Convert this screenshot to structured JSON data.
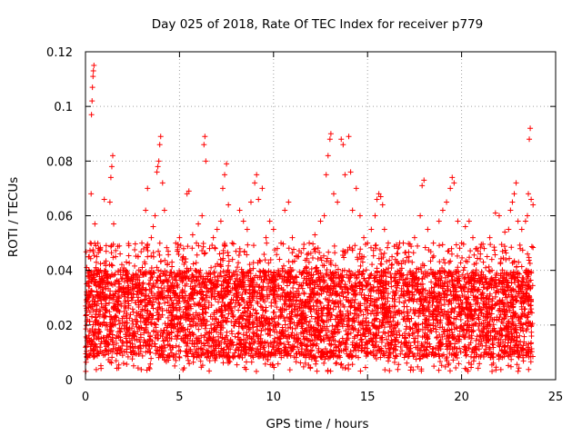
{
  "chart_data": {
    "type": "scatter",
    "title": "Day 025 of 2018, Rate Of TEC Index for receiver p779",
    "xlabel": "GPS time / hours",
    "ylabel": "ROTI / TECUs",
    "xlim": [
      0,
      25
    ],
    "ylim": [
      0,
      0.12
    ],
    "grid": true,
    "marker": "+",
    "color": "#ff0000",
    "x_ticks": [
      0,
      5,
      10,
      15,
      20,
      25
    ],
    "x_tick_labels": [
      "0",
      "5",
      "10",
      "15",
      "20",
      "25"
    ],
    "y_ticks": [
      0,
      0.02,
      0.04,
      0.06,
      0.08,
      0.1,
      0.12
    ],
    "y_tick_labels": [
      "0",
      "0.02",
      "0.04",
      "0.06",
      "0.08",
      "0.1",
      "0.12"
    ],
    "series": [
      {
        "name": "ROTI",
        "points": [
          [
            0.05,
            0.012
          ],
          [
            0.1,
            0.022
          ],
          [
            0.15,
            0.03
          ],
          [
            0.2,
            0.045
          ],
          [
            0.25,
            0.05
          ],
          [
            0.3,
            0.068
          ],
          [
            0.32,
            0.097
          ],
          [
            0.35,
            0.102
          ],
          [
            0.37,
            0.107
          ],
          [
            0.4,
            0.111
          ],
          [
            0.42,
            0.113
          ],
          [
            0.45,
            0.115
          ],
          [
            0.5,
            0.057
          ],
          [
            0.55,
            0.049
          ],
          [
            0.6,
            0.045
          ],
          [
            0.7,
            0.048
          ],
          [
            0.8,
            0.04
          ],
          [
            0.9,
            0.037
          ],
          [
            1.0,
            0.066
          ],
          [
            1.1,
            0.047
          ],
          [
            1.3,
            0.065
          ],
          [
            1.35,
            0.074
          ],
          [
            1.4,
            0.078
          ],
          [
            1.45,
            0.082
          ],
          [
            1.5,
            0.057
          ],
          [
            1.6,
            0.045
          ],
          [
            1.8,
            0.035
          ],
          [
            2.0,
            0.04
          ],
          [
            2.2,
            0.037
          ],
          [
            2.5,
            0.036
          ],
          [
            2.8,
            0.045
          ],
          [
            3.0,
            0.05
          ],
          [
            3.2,
            0.062
          ],
          [
            3.3,
            0.07
          ],
          [
            3.5,
            0.052
          ],
          [
            3.6,
            0.056
          ],
          [
            3.7,
            0.06
          ],
          [
            3.8,
            0.076
          ],
          [
            3.85,
            0.078
          ],
          [
            3.9,
            0.08
          ],
          [
            3.95,
            0.086
          ],
          [
            4.0,
            0.089
          ],
          [
            4.1,
            0.072
          ],
          [
            4.2,
            0.062
          ],
          [
            4.4,
            0.047
          ],
          [
            4.6,
            0.043
          ],
          [
            4.8,
            0.05
          ],
          [
            5.0,
            0.052
          ],
          [
            5.2,
            0.045
          ],
          [
            5.4,
            0.068
          ],
          [
            5.5,
            0.069
          ],
          [
            5.7,
            0.053
          ],
          [
            5.9,
            0.05
          ],
          [
            6.0,
            0.057
          ],
          [
            6.2,
            0.06
          ],
          [
            6.3,
            0.086
          ],
          [
            6.35,
            0.089
          ],
          [
            6.4,
            0.08
          ],
          [
            6.6,
            0.048
          ],
          [
            6.8,
            0.052
          ],
          [
            7.0,
            0.055
          ],
          [
            7.2,
            0.058
          ],
          [
            7.3,
            0.07
          ],
          [
            7.4,
            0.075
          ],
          [
            7.5,
            0.079
          ],
          [
            7.6,
            0.064
          ],
          [
            7.8,
            0.05
          ],
          [
            8.0,
            0.047
          ],
          [
            8.2,
            0.062
          ],
          [
            8.4,
            0.058
          ],
          [
            8.6,
            0.055
          ],
          [
            8.8,
            0.065
          ],
          [
            9.0,
            0.072
          ],
          [
            9.1,
            0.075
          ],
          [
            9.2,
            0.066
          ],
          [
            9.4,
            0.07
          ],
          [
            9.6,
            0.052
          ],
          [
            9.8,
            0.058
          ],
          [
            10.0,
            0.055
          ],
          [
            10.2,
            0.048
          ],
          [
            10.4,
            0.05
          ],
          [
            10.6,
            0.062
          ],
          [
            10.8,
            0.065
          ],
          [
            11.0,
            0.052
          ],
          [
            11.3,
            0.045
          ],
          [
            11.6,
            0.048
          ],
          [
            11.9,
            0.05
          ],
          [
            12.2,
            0.053
          ],
          [
            12.5,
            0.058
          ],
          [
            12.7,
            0.06
          ],
          [
            12.8,
            0.075
          ],
          [
            12.9,
            0.082
          ],
          [
            13.0,
            0.088
          ],
          [
            13.05,
            0.09
          ],
          [
            13.2,
            0.068
          ],
          [
            13.4,
            0.065
          ],
          [
            13.6,
            0.088
          ],
          [
            13.7,
            0.086
          ],
          [
            13.8,
            0.075
          ],
          [
            14.0,
            0.089
          ],
          [
            14.1,
            0.076
          ],
          [
            14.2,
            0.062
          ],
          [
            14.4,
            0.07
          ],
          [
            14.6,
            0.06
          ],
          [
            14.8,
            0.052
          ],
          [
            15.0,
            0.05
          ],
          [
            15.2,
            0.055
          ],
          [
            15.4,
            0.06
          ],
          [
            15.5,
            0.066
          ],
          [
            15.6,
            0.068
          ],
          [
            15.7,
            0.067
          ],
          [
            15.8,
            0.064
          ],
          [
            15.9,
            0.055
          ],
          [
            16.1,
            0.05
          ],
          [
            16.3,
            0.045
          ],
          [
            16.6,
            0.048
          ],
          [
            16.9,
            0.05
          ],
          [
            17.2,
            0.045
          ],
          [
            17.5,
            0.052
          ],
          [
            17.8,
            0.06
          ],
          [
            17.9,
            0.071
          ],
          [
            18.0,
            0.073
          ],
          [
            18.2,
            0.055
          ],
          [
            18.5,
            0.05
          ],
          [
            18.8,
            0.058
          ],
          [
            19.0,
            0.062
          ],
          [
            19.2,
            0.065
          ],
          [
            19.4,
            0.07
          ],
          [
            19.5,
            0.074
          ],
          [
            19.6,
            0.072
          ],
          [
            19.8,
            0.058
          ],
          [
            20.0,
            0.05
          ],
          [
            20.2,
            0.056
          ],
          [
            20.4,
            0.058
          ],
          [
            20.6,
            0.052
          ],
          [
            20.8,
            0.048
          ],
          [
            21.0,
            0.046
          ],
          [
            21.2,
            0.048
          ],
          [
            21.5,
            0.052
          ],
          [
            21.8,
            0.061
          ],
          [
            22.0,
            0.06
          ],
          [
            22.3,
            0.054
          ],
          [
            22.5,
            0.055
          ],
          [
            22.6,
            0.062
          ],
          [
            22.7,
            0.065
          ],
          [
            22.8,
            0.068
          ],
          [
            22.9,
            0.072
          ],
          [
            23.0,
            0.058
          ],
          [
            23.2,
            0.055
          ],
          [
            23.4,
            0.058
          ],
          [
            23.5,
            0.06
          ],
          [
            23.55,
            0.068
          ],
          [
            23.6,
            0.088
          ],
          [
            23.65,
            0.092
          ],
          [
            23.7,
            0.066
          ],
          [
            23.8,
            0.064
          ]
        ]
      }
    ],
    "dense_band": {
      "description": "dense cloud of points",
      "x_range": [
        0,
        23.8
      ],
      "baseline_y": [
        0.008,
        0.04
      ]
    }
  }
}
